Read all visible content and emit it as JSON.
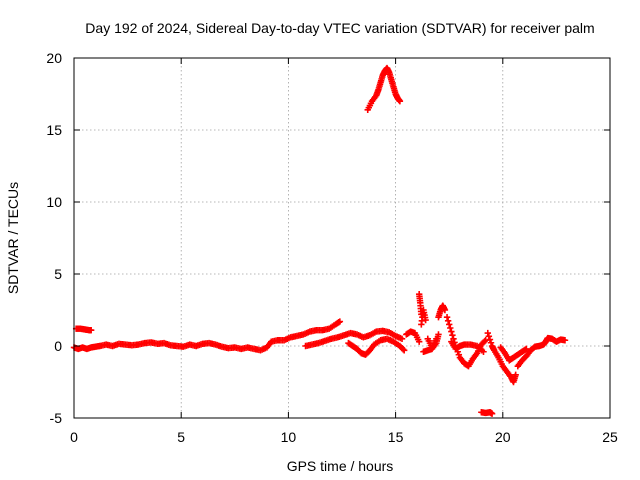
{
  "chart_data": {
    "type": "scatter",
    "title": "Day 192 of 2024, Sidereal Day-to-day VTEC variation (SDTVAR) for receiver palm",
    "xlabel": "GPS time / hours",
    "ylabel": "SDTVAR / TECUs",
    "xlim": [
      0,
      25
    ],
    "ylim": [
      -5,
      20
    ],
    "xticks": [
      "0",
      "5",
      "10",
      "15",
      "20",
      "25"
    ],
    "yticks": [
      "-5",
      "0",
      "5",
      "10",
      "15",
      "20"
    ],
    "grid": true,
    "marker": "plus",
    "color": "#ff0000",
    "series": [
      {
        "name": "SDTVAR",
        "points": [
          [
            0.1,
            1.2
          ],
          [
            0.3,
            1.2
          ],
          [
            0.5,
            1.15
          ],
          [
            0.7,
            1.1
          ],
          [
            0.8,
            1.1
          ],
          [
            0.0,
            -0.1
          ],
          [
            0.2,
            -0.2
          ],
          [
            0.4,
            -0.1
          ],
          [
            0.6,
            -0.2
          ],
          [
            0.8,
            -0.1
          ],
          [
            1.0,
            -0.05
          ],
          [
            1.2,
            0.0
          ],
          [
            1.5,
            0.1
          ],
          [
            1.8,
            0.0
          ],
          [
            2.1,
            0.15
          ],
          [
            2.4,
            0.1
          ],
          [
            2.7,
            0.05
          ],
          [
            3.0,
            0.1
          ],
          [
            3.3,
            0.2
          ],
          [
            3.6,
            0.25
          ],
          [
            3.9,
            0.15
          ],
          [
            4.2,
            0.2
          ],
          [
            4.5,
            0.05
          ],
          [
            4.8,
            0.0
          ],
          [
            5.1,
            -0.05
          ],
          [
            5.4,
            0.1
          ],
          [
            5.7,
            0.0
          ],
          [
            6.0,
            0.15
          ],
          [
            6.3,
            0.2
          ],
          [
            6.6,
            0.1
          ],
          [
            6.9,
            -0.05
          ],
          [
            7.2,
            -0.15
          ],
          [
            7.5,
            -0.1
          ],
          [
            7.8,
            -0.2
          ],
          [
            8.1,
            -0.1
          ],
          [
            8.4,
            -0.2
          ],
          [
            8.7,
            -0.3
          ],
          [
            9.0,
            -0.1
          ],
          [
            9.2,
            0.3
          ],
          [
            9.5,
            0.4
          ],
          [
            9.8,
            0.4
          ],
          [
            10.1,
            0.6
          ],
          [
            10.4,
            0.7
          ],
          [
            10.7,
            0.8
          ],
          [
            11.0,
            1.0
          ],
          [
            11.3,
            1.1
          ],
          [
            11.6,
            1.1
          ],
          [
            11.9,
            1.2
          ],
          [
            12.2,
            1.5
          ],
          [
            12.4,
            1.7
          ],
          [
            10.8,
            0.0
          ],
          [
            11.1,
            0.1
          ],
          [
            11.4,
            0.2
          ],
          [
            11.7,
            0.35
          ],
          [
            12.0,
            0.5
          ],
          [
            12.3,
            0.6
          ],
          [
            12.6,
            0.75
          ],
          [
            12.9,
            0.9
          ],
          [
            13.2,
            0.8
          ],
          [
            13.5,
            0.6
          ],
          [
            13.8,
            0.75
          ],
          [
            14.1,
            1.0
          ],
          [
            14.4,
            1.05
          ],
          [
            14.7,
            0.95
          ],
          [
            15.0,
            0.7
          ],
          [
            15.3,
            0.5
          ],
          [
            12.8,
            0.2
          ],
          [
            13.0,
            0.0
          ],
          [
            13.2,
            -0.2
          ],
          [
            13.4,
            -0.5
          ],
          [
            13.6,
            -0.6
          ],
          [
            13.8,
            -0.3
          ],
          [
            14.0,
            0.1
          ],
          [
            14.3,
            0.4
          ],
          [
            14.6,
            0.5
          ],
          [
            14.9,
            0.3
          ],
          [
            15.2,
            0.0
          ],
          [
            15.4,
            -0.3
          ],
          [
            13.7,
            16.4
          ],
          [
            13.9,
            17.0
          ],
          [
            14.1,
            17.4
          ],
          [
            14.2,
            17.8
          ],
          [
            14.3,
            18.3
          ],
          [
            14.4,
            18.8
          ],
          [
            14.5,
            19.1
          ],
          [
            14.6,
            19.3
          ],
          [
            14.7,
            19.0
          ],
          [
            14.8,
            18.5
          ],
          [
            14.9,
            18.0
          ],
          [
            15.0,
            17.5
          ],
          [
            15.1,
            17.2
          ],
          [
            15.2,
            17.0
          ],
          [
            15.5,
            0.8
          ],
          [
            15.7,
            1.0
          ],
          [
            15.9,
            0.9
          ],
          [
            16.1,
            0.3
          ],
          [
            16.2,
            1.5
          ],
          [
            16.3,
            2.5
          ],
          [
            16.4,
            1.8
          ],
          [
            16.1,
            3.6
          ],
          [
            16.15,
            3.0
          ],
          [
            16.2,
            2.2
          ],
          [
            16.5,
            0.5
          ],
          [
            16.7,
            -0.1
          ],
          [
            16.9,
            0.5
          ],
          [
            17.0,
            2.0
          ],
          [
            17.1,
            2.5
          ],
          [
            17.2,
            2.8
          ],
          [
            17.3,
            2.5
          ],
          [
            16.3,
            -0.4
          ],
          [
            16.5,
            -0.3
          ],
          [
            16.7,
            -0.2
          ],
          [
            16.9,
            0.2
          ],
          [
            17.0,
            0.8
          ],
          [
            17.4,
            2.0
          ],
          [
            17.6,
            1.0
          ],
          [
            17.8,
            0.0
          ],
          [
            18.0,
            -0.8
          ],
          [
            18.2,
            -1.2
          ],
          [
            18.4,
            -1.4
          ],
          [
            18.6,
            -0.9
          ],
          [
            18.8,
            -0.5
          ],
          [
            19.0,
            0.1
          ],
          [
            19.2,
            0.4
          ],
          [
            17.6,
            0.3
          ],
          [
            17.8,
            -0.2
          ],
          [
            18.0,
            0.0
          ],
          [
            18.2,
            0.1
          ],
          [
            18.5,
            0.1
          ],
          [
            18.8,
            0.0
          ],
          [
            19.1,
            -0.4
          ],
          [
            19.3,
            0.9
          ],
          [
            19.5,
            0.0
          ],
          [
            19.6,
            -0.3
          ],
          [
            19.8,
            -0.8
          ],
          [
            20.0,
            -1.4
          ],
          [
            20.2,
            -1.8
          ],
          [
            20.4,
            -2.2
          ],
          [
            20.5,
            -2.5
          ],
          [
            20.6,
            -2.0
          ],
          [
            19.9,
            -0.1
          ],
          [
            20.1,
            -0.5
          ],
          [
            20.3,
            -1.0
          ],
          [
            20.5,
            -0.8
          ],
          [
            20.7,
            -0.6
          ],
          [
            20.9,
            -0.4
          ],
          [
            21.1,
            -0.2
          ],
          [
            20.7,
            -1.4
          ],
          [
            20.9,
            -1.0
          ],
          [
            21.1,
            -0.7
          ],
          [
            21.3,
            -0.3
          ],
          [
            21.5,
            -0.05
          ],
          [
            21.7,
            0.0
          ],
          [
            21.9,
            0.1
          ],
          [
            22.0,
            0.3
          ],
          [
            22.1,
            0.55
          ],
          [
            22.3,
            0.5
          ],
          [
            22.5,
            0.3
          ],
          [
            22.7,
            0.45
          ],
          [
            22.9,
            0.4
          ],
          [
            19.0,
            -4.6
          ],
          [
            19.2,
            -4.65
          ],
          [
            19.4,
            -4.6
          ],
          [
            19.5,
            -4.7
          ]
        ]
      }
    ]
  }
}
